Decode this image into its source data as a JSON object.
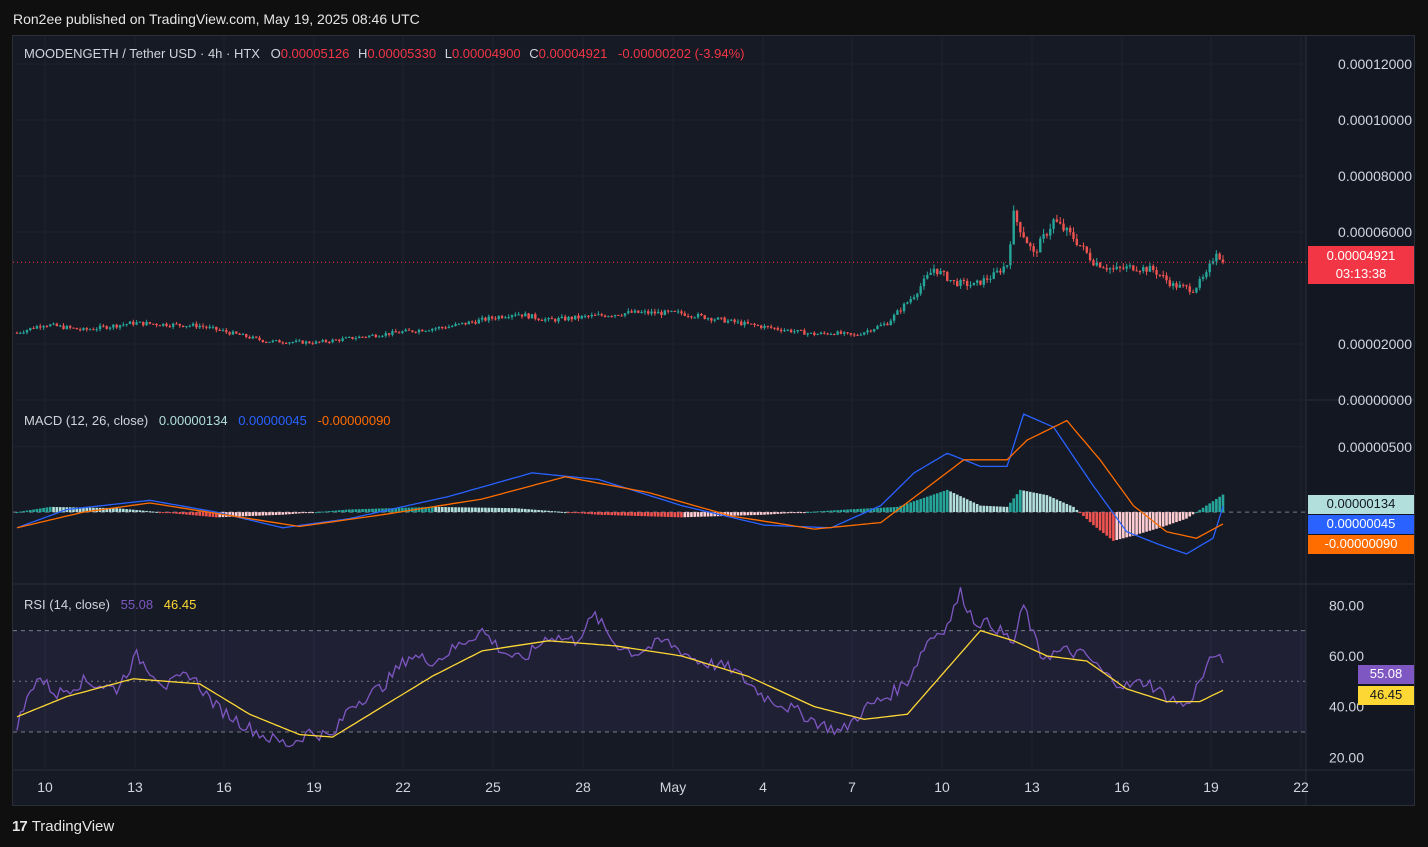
{
  "header": {
    "published_text": "Ron2ee published on TradingView.com, May 19, 2025 08:46 UTC"
  },
  "price_legend": {
    "symbol": "MOODENGETH / Tether USD · 4h · HTX",
    "o_label": "O",
    "o": "0.00005126",
    "h_label": "H",
    "h": "0.00005330",
    "l_label": "L",
    "l": "0.00004900",
    "c_label": "C",
    "c": "0.00004921",
    "change": "-0.00000202 (-3.94%)"
  },
  "price_tag": {
    "value": "0.00004921",
    "countdown": "03:13:38"
  },
  "macd_legend": {
    "label": "MACD (12, 26, close)",
    "hist": "0.00000134",
    "macd": "0.00000045",
    "signal": "-0.00000090"
  },
  "macd_tags": {
    "hist": "0.00000134",
    "macd": "0.00000045",
    "signal": "-0.00000090"
  },
  "rsi_legend": {
    "label": "RSI (14, close)",
    "rsi": "55.08",
    "ma": "46.45"
  },
  "rsi_tags": {
    "rsi": "55.08",
    "ma": "46.45"
  },
  "footer": {
    "brand": "TradingView",
    "logo": "17"
  },
  "colors": {
    "up": "#26a69a",
    "down": "#ef5350",
    "macd": "#2962ff",
    "signal": "#ff6d00",
    "hist_up": "#26a69a",
    "hist_up_light": "#b2dfdb",
    "hist_down": "#ef5350",
    "hist_down_light": "#ffcdd2",
    "rsi": "#7e57c2",
    "rsi_ma": "#fdd835"
  },
  "chart_data": [
    {
      "type": "candlestick",
      "title": "MOODENGETH / Tether USD · 4h · HTX",
      "ylim": [
        0,
        0.00013
      ],
      "y_ticks": [
        "0.00012000",
        "0.00010000",
        "0.00008000",
        "0.00006000",
        "0.00002000",
        "0.00000000"
      ],
      "x_ticks": [
        "10",
        "13",
        "16",
        "19",
        "22",
        "25",
        "28",
        "May",
        "4",
        "7",
        "10",
        "13",
        "16",
        "19",
        "22"
      ],
      "last_price": 4.921e-05,
      "close_anchors": [
        [
          0,
          2.4e-05
        ],
        [
          8,
          2.7e-05
        ],
        [
          20,
          2.5e-05
        ],
        [
          35,
          2.75e-05
        ],
        [
          55,
          2.65e-05
        ],
        [
          75,
          2.1e-05
        ],
        [
          90,
          2.05e-05
        ],
        [
          110,
          2.35e-05
        ],
        [
          130,
          2.62e-05
        ],
        [
          150,
          3.1e-05
        ],
        [
          160,
          2.85e-05
        ],
        [
          185,
          3.12e-05
        ],
        [
          200,
          3.1e-05
        ],
        [
          220,
          2.7e-05
        ],
        [
          240,
          2.35e-05
        ],
        [
          246,
          2.4e-05
        ],
        [
          252,
          2.3e-05
        ],
        [
          262,
          2.75e-05
        ],
        [
          270,
          3.75e-05
        ],
        [
          276,
          4.7e-05
        ],
        [
          282,
          4.2e-05
        ],
        [
          288,
          4.1e-05
        ],
        [
          294,
          4.45e-05
        ],
        [
          298,
          4.85e-05
        ],
        [
          300,
          6.6e-05
        ],
        [
          306,
          5.2e-05
        ],
        [
          312,
          6.4e-05
        ],
        [
          318,
          5.8e-05
        ],
        [
          324,
          4.95e-05
        ],
        [
          330,
          4.65e-05
        ],
        [
          336,
          4.75e-05
        ],
        [
          342,
          4.65e-05
        ],
        [
          348,
          4.1e-05
        ],
        [
          354,
          3.95e-05
        ],
        [
          358,
          4.45e-05
        ],
        [
          361,
          5.35e-05
        ],
        [
          363,
          4.921e-05
        ]
      ]
    },
    {
      "type": "line",
      "title": "MACD (12, 26, close)",
      "ylim": [
        -5.5e-06,
        8.5e-06
      ],
      "y_ticks": [
        "0.00000500"
      ],
      "series": [
        {
          "name": "MACD",
          "values": [
            [
              0,
              -1.2e-06
            ],
            [
              15,
              2e-07
            ],
            [
              40,
              9e-07
            ],
            [
              60,
              0.0
            ],
            [
              80,
              -1.2e-06
            ],
            [
              100,
              -5e-07
            ],
            [
              130,
              1.2e-06
            ],
            [
              155,
              3e-06
            ],
            [
              175,
              2.5e-06
            ],
            [
              200,
              5e-07
            ],
            [
              225,
              -1e-06
            ],
            [
              245,
              -1.2e-06
            ],
            [
              260,
              5e-07
            ],
            [
              270,
              3e-06
            ],
            [
              280,
              4.5e-06
            ],
            [
              290,
              3.5e-06
            ],
            [
              298,
              3.5e-06
            ],
            [
              303,
              7.5e-06
            ],
            [
              312,
              6.5e-06
            ],
            [
              324,
              2e-06
            ],
            [
              334,
              -1.5e-06
            ],
            [
              344,
              -2.5e-06
            ],
            [
              352,
              -3.2e-06
            ],
            [
              360,
              -2e-06
            ],
            [
              363,
              4.5e-07
            ]
          ]
        },
        {
          "name": "Signal",
          "values": [
            [
              0,
              -1.2e-06
            ],
            [
              20,
              0.0
            ],
            [
              40,
              7e-07
            ],
            [
              65,
              -3e-07
            ],
            [
              85,
              -1.1e-06
            ],
            [
              110,
              -2e-07
            ],
            [
              140,
              1e-06
            ],
            [
              165,
              2.7e-06
            ],
            [
              190,
              1.5e-06
            ],
            [
              215,
              -3e-07
            ],
            [
              240,
              -1.3e-06
            ],
            [
              260,
              -8e-07
            ],
            [
              272,
              1.5e-06
            ],
            [
              285,
              4e-06
            ],
            [
              298,
              4e-06
            ],
            [
              304,
              5.5e-06
            ],
            [
              316,
              7e-06
            ],
            [
              326,
              4e-06
            ],
            [
              336,
              5e-07
            ],
            [
              346,
              -1.5e-06
            ],
            [
              355,
              -2e-06
            ],
            [
              363,
              -9e-07
            ]
          ]
        },
        {
          "name": "Histogram",
          "values": [
            [
              0,
              0.0
            ],
            [
              10,
              4e-07
            ],
            [
              30,
              3e-07
            ],
            [
              60,
              -4e-07
            ],
            [
              80,
              -2e-07
            ],
            [
              100,
              2e-07
            ],
            [
              125,
              4e-07
            ],
            [
              150,
              3e-07
            ],
            [
              175,
              -2e-07
            ],
            [
              200,
              -4e-07
            ],
            [
              225,
              -2e-07
            ],
            [
              250,
              2e-07
            ],
            [
              265,
              4e-07
            ],
            [
              280,
              1.7e-06
            ],
            [
              290,
              5e-07
            ],
            [
              298,
              4e-07
            ],
            [
              302,
              1.7e-06
            ],
            [
              310,
              1.3e-06
            ],
            [
              318,
              4e-07
            ],
            [
              324,
              -1e-06
            ],
            [
              330,
              -2.2e-06
            ],
            [
              336,
              -1.8e-06
            ],
            [
              344,
              -1.2e-06
            ],
            [
              352,
              -5e-07
            ],
            [
              358,
              5e-07
            ],
            [
              363,
              1.34e-06
            ]
          ]
        }
      ]
    },
    {
      "type": "line",
      "title": "RSI (14, close)",
      "ylim": [
        15,
        88
      ],
      "y_ticks": [
        "80.00",
        "60.00",
        "40.00",
        "20.00"
      ],
      "band": [
        30,
        70
      ],
      "series": [
        {
          "name": "RSI",
          "values": [
            [
              0,
              33
            ],
            [
              6,
              52
            ],
            [
              12,
              45
            ],
            [
              20,
              50
            ],
            [
              30,
              47
            ],
            [
              36,
              60
            ],
            [
              45,
              48
            ],
            [
              52,
              53
            ],
            [
              60,
              40
            ],
            [
              68,
              33
            ],
            [
              75,
              28
            ],
            [
              82,
              25
            ],
            [
              88,
              30
            ],
            [
              95,
              28
            ],
            [
              100,
              40
            ],
            [
              110,
              48
            ],
            [
              118,
              60
            ],
            [
              126,
              58
            ],
            [
              135,
              66
            ],
            [
              140,
              70
            ],
            [
              146,
              62
            ],
            [
              152,
              58
            ],
            [
              160,
              68
            ],
            [
              168,
              66
            ],
            [
              174,
              76
            ],
            [
              180,
              65
            ],
            [
              186,
              61
            ],
            [
              195,
              66
            ],
            [
              205,
              58
            ],
            [
              215,
              55
            ],
            [
              225,
              44
            ],
            [
              235,
              38
            ],
            [
              242,
              33
            ],
            [
              248,
              30
            ],
            [
              256,
              40
            ],
            [
              262,
              44
            ],
            [
              268,
              50
            ],
            [
              274,
              66
            ],
            [
              280,
              72
            ],
            [
              284,
              85
            ],
            [
              288,
              74
            ],
            [
              294,
              72
            ],
            [
              300,
              65
            ],
            [
              303,
              80
            ],
            [
              308,
              60
            ],
            [
              316,
              62
            ],
            [
              322,
              60
            ],
            [
              328,
              52
            ],
            [
              334,
              48
            ],
            [
              340,
              50
            ],
            [
              346,
              44
            ],
            [
              352,
              40
            ],
            [
              356,
              50
            ],
            [
              361,
              62
            ],
            [
              363,
              55
            ]
          ]
        },
        {
          "name": "RSI MA",
          "values": [
            [
              0,
              36
            ],
            [
              15,
              44
            ],
            [
              35,
              51
            ],
            [
              55,
              49
            ],
            [
              70,
              37
            ],
            [
              85,
              29
            ],
            [
              95,
              28
            ],
            [
              110,
              40
            ],
            [
              125,
              52
            ],
            [
              140,
              62
            ],
            [
              160,
              66
            ],
            [
              180,
              64
            ],
            [
              200,
              60
            ],
            [
              220,
              52
            ],
            [
              240,
              40
            ],
            [
              255,
              35
            ],
            [
              268,
              37
            ],
            [
              280,
              55
            ],
            [
              290,
              70
            ],
            [
              300,
              66
            ],
            [
              310,
              60
            ],
            [
              322,
              58
            ],
            [
              334,
              47
            ],
            [
              346,
              42
            ],
            [
              356,
              42
            ],
            [
              363,
              46.45
            ]
          ]
        }
      ]
    }
  ]
}
